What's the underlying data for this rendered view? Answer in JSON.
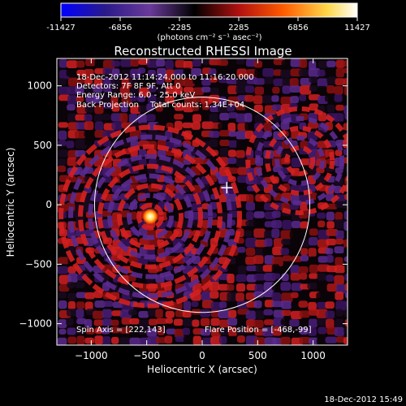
{
  "colorbar": {
    "tick_labels": [
      "-11427",
      "-6856",
      "-2285",
      "2285",
      "6856",
      "11427"
    ],
    "range": [
      -11427,
      11427
    ],
    "unit_label": "(photons cm⁻² s⁻¹ asec⁻²)",
    "colors": [
      "#0000ff",
      "#2a1a8a",
      "#6a3a9a",
      "#000000",
      "#b01010",
      "#ff5a00",
      "#ffd84a",
      "#ffffff"
    ]
  },
  "chart_data": {
    "type": "heatmap",
    "title": "Reconstructed RHESSI Image",
    "xlabel": "Heliocentric X (arcsec)",
    "ylabel": "Heliocentric Y (arcsec)",
    "xlim": [
      -1310,
      1310
    ],
    "ylim": [
      -1180,
      1230
    ],
    "x_ticks": [
      -1000,
      -500,
      0,
      500,
      1000
    ],
    "y_ticks": [
      -1000,
      -500,
      0,
      500,
      1000
    ],
    "x_tick_labels": [
      "−1000",
      "−500",
      "0",
      "500",
      "1000"
    ],
    "y_tick_labels": [
      "−1000",
      "−500",
      "0",
      "500",
      "1000"
    ],
    "solar_disk_radius_arcsec": 970,
    "flare_position": [
      -468,
      -99
    ],
    "spin_axis": [
      222,
      143
    ],
    "sources": [
      {
        "x": -468,
        "y": -99,
        "peak": 11427
      },
      {
        "x": 880,
        "y": 370,
        "peak": 3000
      }
    ]
  },
  "annotations": {
    "time_range": "18-Dec-2012 11:14:24.000 to 11:16:20.000",
    "detectors": "Detectors: 7F 8F 9F, Att 0",
    "energy_range": "Energy Range: 6.0 - 25.0 keV",
    "method": "Back Projection",
    "total_counts": "Total counts: 1.34E+04",
    "spin_axis": "Spin Axis = [222,143]",
    "flare_position": "Flare Position = [-468,-99]"
  },
  "footer": {
    "timestamp": "18-Dec-2012 15:49"
  }
}
